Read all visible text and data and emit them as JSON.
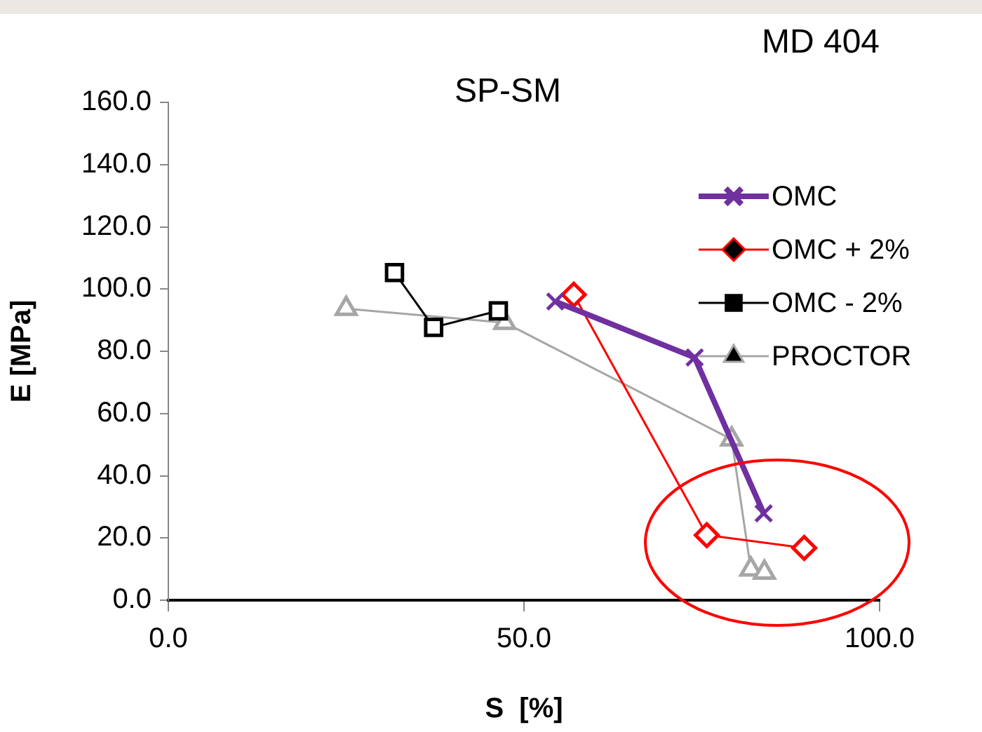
{
  "chart_data": {
    "type": "line",
    "title": "SP-SM",
    "xlabel": "S  [%]",
    "ylabel": "E [MPa]",
    "annotations": [
      "MD 404"
    ],
    "xlim": [
      0,
      100
    ],
    "xticks": [
      {
        "value": 0,
        "label": "0.0"
      },
      {
        "value": 50,
        "label": "50.0"
      },
      {
        "value": 100,
        "label": "100.0"
      }
    ],
    "ylim": [
      0,
      160
    ],
    "yticks": [
      {
        "value": 0,
        "label": "0.0"
      },
      {
        "value": 20,
        "label": "20.0"
      },
      {
        "value": 40,
        "label": "40.0"
      },
      {
        "value": 60,
        "label": "60.0"
      },
      {
        "value": 80,
        "label": "80.0"
      },
      {
        "value": 100,
        "label": "100.0"
      },
      {
        "value": 120,
        "label": "120.0"
      },
      {
        "value": 140,
        "label": "140.0"
      },
      {
        "value": 160,
        "label": "160.0"
      }
    ],
    "grid": false,
    "legend": "top right",
    "series": [
      {
        "name": "OMC",
        "color": "#7030a0",
        "marker": "cross",
        "x": [
          54.4,
          74.0,
          83.7
        ],
        "values": [
          96.0,
          78.0,
          27.9
        ]
      },
      {
        "name": "OMC + 2%",
        "color": "#ff0000",
        "marker": "diamond",
        "x": [
          57.0,
          75.7,
          89.4
        ],
        "values": [
          98.2,
          20.9,
          16.8
        ]
      },
      {
        "name": "OMC - 2%",
        "color": "#000000",
        "marker": "square",
        "x": [
          31.8,
          37.3,
          46.4
        ],
        "values": [
          105.3,
          87.7,
          93.0
        ]
      },
      {
        "name": "PROCTOR",
        "color": "#a6a6a6",
        "marker": "triangle",
        "x": [
          25.0,
          47.3,
          79.2,
          81.9,
          83.8
        ],
        "values": [
          93.7,
          89.2,
          51.7,
          9.9,
          8.9
        ]
      }
    ]
  }
}
